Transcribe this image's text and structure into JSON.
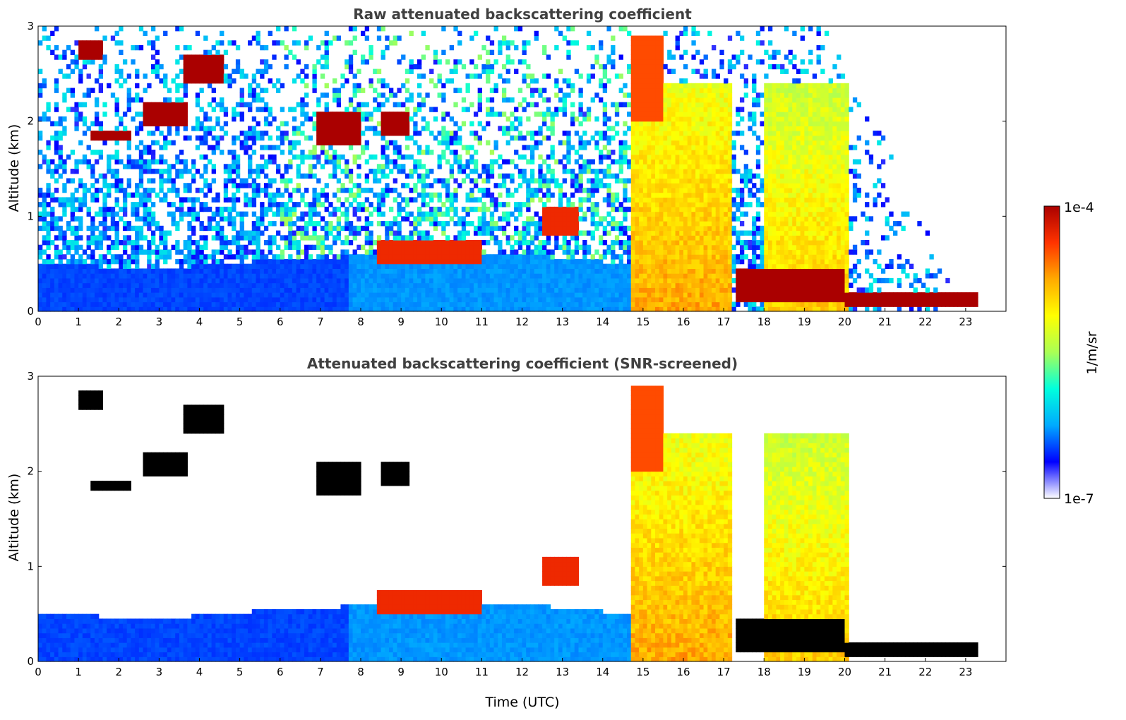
{
  "chart_data": [
    {
      "type": "heatmap",
      "title": "Raw attenuated backscattering coefficient",
      "xlabel": "",
      "ylabel": "Altitude (km)",
      "xlim": [
        0,
        24
      ],
      "ylim": [
        0,
        3
      ],
      "x_ticks": [
        "0",
        "1",
        "2",
        "3",
        "4",
        "5",
        "6",
        "7",
        "8",
        "9",
        "10",
        "11",
        "12",
        "13",
        "14",
        "15",
        "16",
        "17",
        "18",
        "19",
        "20",
        "21",
        "22",
        "23"
      ],
      "y_ticks": [
        "0",
        "1",
        "2",
        "3"
      ],
      "screened": false,
      "features": [
        {
          "kind": "cloud",
          "t0": 1.3,
          "t1": 2.3,
          "z0": 1.78,
          "z1": 1.92,
          "level": 1.0
        },
        {
          "kind": "cloud",
          "t0": 2.6,
          "t1": 3.7,
          "z0": 1.95,
          "z1": 2.2,
          "level": 1.0
        },
        {
          "kind": "cloud",
          "t0": 3.6,
          "t1": 4.6,
          "z0": 2.4,
          "z1": 2.7,
          "level": 1.0
        },
        {
          "kind": "cloud",
          "t0": 1.0,
          "t1": 1.6,
          "z0": 2.65,
          "z1": 2.85,
          "level": 1.0
        },
        {
          "kind": "cloud",
          "t0": 6.9,
          "t1": 8.0,
          "z0": 1.75,
          "z1": 2.1,
          "level": 1.0
        },
        {
          "kind": "cloud",
          "t0": 8.5,
          "t1": 9.2,
          "z0": 1.85,
          "z1": 2.1,
          "level": 1.0
        },
        {
          "kind": "cloud",
          "t0": 14.7,
          "t1": 15.5,
          "z0": 2.0,
          "z1": 2.9,
          "level": 0.85
        },
        {
          "kind": "column",
          "t0": 14.7,
          "t1": 17.2,
          "z0": 0.0,
          "z1": 2.4,
          "level": 0.75
        },
        {
          "kind": "column",
          "t0": 18.0,
          "t1": 20.1,
          "z0": 0.0,
          "z1": 2.4,
          "level": 0.7
        },
        {
          "kind": "cloud",
          "t0": 17.3,
          "t1": 20.0,
          "z0": 0.1,
          "z1": 0.45,
          "level": 1.0
        },
        {
          "kind": "cloud",
          "t0": 20.0,
          "t1": 23.3,
          "z0": 0.05,
          "z1": 0.2,
          "level": 1.0
        },
        {
          "kind": "cloud",
          "t0": 8.4,
          "t1": 11.0,
          "z0": 0.5,
          "z1": 0.75,
          "level": 0.9
        },
        {
          "kind": "cloud",
          "t0": 12.5,
          "t1": 13.4,
          "z0": 0.8,
          "z1": 1.1,
          "level": 0.9
        }
      ],
      "boundary_layer": [
        {
          "t": 0,
          "z": 0.5
        },
        {
          "t": 3,
          "z": 0.45
        },
        {
          "t": 6,
          "z": 0.55
        },
        {
          "t": 9,
          "z": 0.6
        },
        {
          "t": 12,
          "z": 0.6
        },
        {
          "t": 14.7,
          "z": 0.5
        }
      ],
      "data_end_time": 23.3
    },
    {
      "type": "heatmap",
      "title": "Attenuated backscattering coefficient (SNR-screened)",
      "xlabel": "Time (UTC)",
      "ylabel": "Altitude (km)",
      "xlim": [
        0,
        24
      ],
      "ylim": [
        0,
        3
      ],
      "x_ticks": [
        "0",
        "1",
        "2",
        "3",
        "4",
        "5",
        "6",
        "7",
        "8",
        "9",
        "10",
        "11",
        "12",
        "13",
        "14",
        "15",
        "16",
        "17",
        "18",
        "19",
        "20",
        "21",
        "22",
        "23"
      ],
      "y_ticks": [
        "0",
        "1",
        "2",
        "3"
      ],
      "screened": true,
      "data_end_time": 23.3
    }
  ],
  "colorbar": {
    "label": "1/m/sr",
    "min_label": "1e-7",
    "max_label": "1e-4",
    "colormap": [
      "#ffffff",
      "#0000ff",
      "#00aaff",
      "#00ffdd",
      "#aaff55",
      "#ffff00",
      "#ffaa00",
      "#ff3300",
      "#aa0000"
    ],
    "scale": "log"
  }
}
